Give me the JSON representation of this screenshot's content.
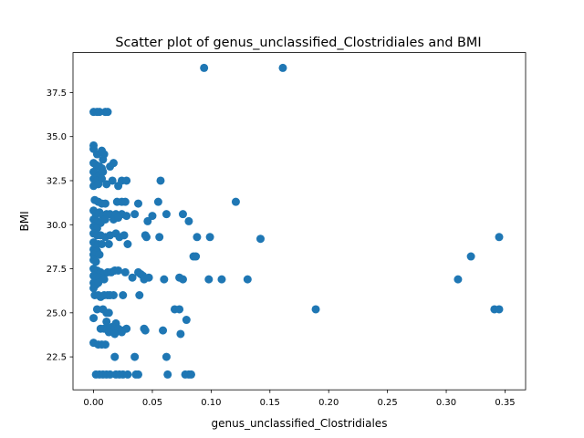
{
  "chart_data": {
    "type": "scatter",
    "title": "Scatter plot of genus_unclassified_Clostridiales and BMI",
    "xlabel": "genus_unclassified_Clostridiales",
    "ylabel": "BMI",
    "xlim": [
      -0.0175,
      0.3675
    ],
    "ylim": [
      20.63,
      39.77
    ],
    "xticks": [
      0.0,
      0.05,
      0.1,
      0.15,
      0.2,
      0.25,
      0.3,
      0.35
    ],
    "xtick_labels": [
      "0.00",
      "0.05",
      "0.10",
      "0.15",
      "0.20",
      "0.25",
      "0.30",
      "0.35"
    ],
    "yticks": [
      22.5,
      25.0,
      27.5,
      30.0,
      32.5,
      35.0,
      37.5
    ],
    "ytick_labels": [
      "22.5",
      "25.0",
      "27.5",
      "30.0",
      "32.5",
      "35.0",
      "37.5"
    ],
    "grid": false,
    "marker_color": "#1f77b4",
    "series": [
      {
        "points": [
          [
            0.094,
            38.9
          ],
          [
            0.161,
            38.9
          ],
          [
            0.0,
            36.4
          ],
          [
            0.003,
            36.4
          ],
          [
            0.005,
            36.4
          ],
          [
            0.01,
            36.4
          ],
          [
            0.012,
            36.4
          ],
          [
            0.0,
            34.5
          ],
          [
            0.0,
            34.3
          ],
          [
            0.003,
            34.0
          ],
          [
            0.007,
            34.2
          ],
          [
            0.009,
            34.0
          ],
          [
            0.008,
            33.7
          ],
          [
            0.0,
            33.5
          ],
          [
            0.002,
            33.4
          ],
          [
            0.005,
            33.3
          ],
          [
            0.007,
            33.2
          ],
          [
            0.014,
            33.3
          ],
          [
            0.017,
            33.5
          ],
          [
            0.0,
            33.0
          ],
          [
            0.002,
            32.9
          ],
          [
            0.005,
            32.8
          ],
          [
            0.008,
            33.0
          ],
          [
            0.0,
            32.6
          ],
          [
            0.003,
            32.5
          ],
          [
            0.007,
            32.6
          ],
          [
            0.011,
            32.3
          ],
          [
            0.016,
            32.5
          ],
          [
            0.021,
            32.2
          ],
          [
            0.024,
            32.5
          ],
          [
            0.028,
            32.5
          ],
          [
            0.057,
            32.5
          ],
          [
            0.0,
            32.2
          ],
          [
            0.004,
            32.3
          ],
          [
            0.001,
            31.4
          ],
          [
            0.004,
            31.3
          ],
          [
            0.007,
            31.2
          ],
          [
            0.01,
            31.2
          ],
          [
            0.02,
            31.3
          ],
          [
            0.024,
            31.3
          ],
          [
            0.027,
            31.3
          ],
          [
            0.038,
            31.2
          ],
          [
            0.055,
            31.3
          ],
          [
            0.121,
            31.3
          ],
          [
            0.0,
            30.8
          ],
          [
            0.002,
            30.6
          ],
          [
            0.005,
            30.7
          ],
          [
            0.008,
            30.5
          ],
          [
            0.011,
            30.6
          ],
          [
            0.014,
            30.6
          ],
          [
            0.019,
            30.6
          ],
          [
            0.024,
            30.6
          ],
          [
            0.028,
            30.5
          ],
          [
            0.035,
            30.6
          ],
          [
            0.05,
            30.5
          ],
          [
            0.062,
            30.6
          ],
          [
            0.076,
            30.6
          ],
          [
            0.0,
            30.3
          ],
          [
            0.003,
            30.2
          ],
          [
            0.006,
            30.1
          ],
          [
            0.01,
            30.3
          ],
          [
            0.017,
            30.3
          ],
          [
            0.021,
            30.4
          ],
          [
            0.046,
            30.2
          ],
          [
            0.081,
            30.2
          ],
          [
            0.0,
            29.9
          ],
          [
            0.003,
            29.8
          ],
          [
            0.0,
            29.5
          ],
          [
            0.003,
            29.4
          ],
          [
            0.006,
            29.4
          ],
          [
            0.01,
            29.3
          ],
          [
            0.014,
            29.4
          ],
          [
            0.019,
            29.5
          ],
          [
            0.022,
            29.3
          ],
          [
            0.026,
            29.4
          ],
          [
            0.044,
            29.4
          ],
          [
            0.045,
            29.3
          ],
          [
            0.056,
            29.3
          ],
          [
            0.088,
            29.3
          ],
          [
            0.099,
            29.3
          ],
          [
            0.142,
            29.2
          ],
          [
            0.345,
            29.3
          ],
          [
            0.0,
            29.0
          ],
          [
            0.004,
            28.9
          ],
          [
            0.007,
            28.9
          ],
          [
            0.013,
            28.9
          ],
          [
            0.029,
            28.9
          ],
          [
            0.0,
            28.6
          ],
          [
            0.003,
            28.5
          ],
          [
            0.0,
            28.3
          ],
          [
            0.005,
            28.3
          ],
          [
            0.085,
            28.2
          ],
          [
            0.087,
            28.2
          ],
          [
            0.321,
            28.2
          ],
          [
            0.0,
            28.0
          ],
          [
            0.002,
            27.9
          ],
          [
            0.0,
            27.5
          ],
          [
            0.003,
            27.4
          ],
          [
            0.006,
            27.3
          ],
          [
            0.009,
            27.2
          ],
          [
            0.012,
            27.3
          ],
          [
            0.015,
            27.3
          ],
          [
            0.018,
            27.4
          ],
          [
            0.021,
            27.4
          ],
          [
            0.027,
            27.3
          ],
          [
            0.038,
            27.3
          ],
          [
            0.04,
            27.2
          ],
          [
            0.0,
            27.1
          ],
          [
            0.002,
            27.0
          ],
          [
            0.005,
            27.0
          ],
          [
            0.009,
            26.9
          ],
          [
            0.033,
            27.0
          ],
          [
            0.042,
            27.1
          ],
          [
            0.043,
            26.9
          ],
          [
            0.047,
            27.0
          ],
          [
            0.06,
            26.9
          ],
          [
            0.073,
            27.0
          ],
          [
            0.076,
            26.9
          ],
          [
            0.098,
            26.9
          ],
          [
            0.109,
            26.9
          ],
          [
            0.131,
            26.9
          ],
          [
            0.31,
            26.9
          ],
          [
            0.0,
            26.7
          ],
          [
            0.002,
            26.6
          ],
          [
            0.004,
            26.7
          ],
          [
            0.0,
            26.4
          ],
          [
            0.001,
            26.0
          ],
          [
            0.004,
            26.0
          ],
          [
            0.006,
            25.9
          ],
          [
            0.009,
            26.0
          ],
          [
            0.012,
            26.0
          ],
          [
            0.014,
            26.0
          ],
          [
            0.017,
            26.0
          ],
          [
            0.025,
            26.0
          ],
          [
            0.039,
            26.0
          ],
          [
            0.003,
            25.2
          ],
          [
            0.008,
            25.2
          ],
          [
            0.011,
            25.0
          ],
          [
            0.013,
            25.0
          ],
          [
            0.069,
            25.2
          ],
          [
            0.073,
            25.2
          ],
          [
            0.189,
            25.2
          ],
          [
            0.341,
            25.2
          ],
          [
            0.345,
            25.2
          ],
          [
            0.0,
            24.7
          ],
          [
            0.011,
            24.5
          ],
          [
            0.019,
            24.4
          ],
          [
            0.016,
            24.2
          ],
          [
            0.079,
            24.6
          ],
          [
            0.006,
            24.1
          ],
          [
            0.009,
            24.1
          ],
          [
            0.012,
            24.1
          ],
          [
            0.014,
            24.1
          ],
          [
            0.017,
            24.1
          ],
          [
            0.021,
            24.1
          ],
          [
            0.024,
            24.0
          ],
          [
            0.028,
            24.1
          ],
          [
            0.043,
            24.1
          ],
          [
            0.044,
            24.0
          ],
          [
            0.059,
            24.0
          ],
          [
            0.013,
            23.9
          ],
          [
            0.018,
            23.8
          ],
          [
            0.024,
            23.9
          ],
          [
            0.074,
            23.8
          ],
          [
            0.0,
            23.3
          ],
          [
            0.004,
            23.2
          ],
          [
            0.007,
            23.2
          ],
          [
            0.01,
            23.2
          ],
          [
            0.018,
            22.5
          ],
          [
            0.035,
            22.5
          ],
          [
            0.062,
            22.5
          ],
          [
            0.002,
            21.5
          ],
          [
            0.005,
            21.5
          ],
          [
            0.008,
            21.5
          ],
          [
            0.011,
            21.5
          ],
          [
            0.014,
            21.5
          ],
          [
            0.019,
            21.5
          ],
          [
            0.022,
            21.5
          ],
          [
            0.025,
            21.5
          ],
          [
            0.029,
            21.5
          ],
          [
            0.036,
            21.5
          ],
          [
            0.038,
            21.5
          ],
          [
            0.063,
            21.5
          ],
          [
            0.078,
            21.5
          ],
          [
            0.081,
            21.5
          ],
          [
            0.083,
            21.5
          ]
        ]
      }
    ]
  }
}
